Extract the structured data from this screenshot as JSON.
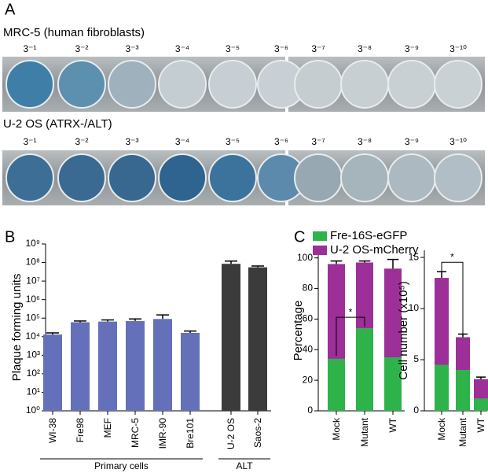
{
  "panel_labels": [
    "A",
    "B",
    "C"
  ],
  "plates": [
    {
      "title": "MRC-5 (human fibroblasts)",
      "dilutions": [
        "3⁻¹",
        "3⁻²",
        "3⁻³",
        "3⁻⁴",
        "3⁻⁵",
        "3⁻⁶",
        "3⁻⁷",
        "3⁻⁸",
        "3⁻⁹",
        "3⁻¹⁰"
      ]
    },
    {
      "title": "U-2 OS (ATRX-/ALT)",
      "dilutions": [
        "3⁻¹",
        "3⁻²",
        "3⁻³",
        "3⁻⁴",
        "3⁻⁵",
        "3⁻⁶",
        "3⁻⁷",
        "3⁻⁸",
        "3⁻⁹",
        "3⁻¹⁰"
      ]
    }
  ],
  "chart_data": [
    {
      "type": "bar",
      "log_scale": true,
      "ylabel": "Plaque forming units",
      "categories": [
        "WI-38",
        "Fre98",
        "MEF",
        "MRC-5",
        "IMR-90",
        "Bre101",
        "U-2 OS",
        "Saos-2"
      ],
      "values": [
        13000,
        60000,
        65000,
        70000,
        90000,
        16000,
        85000000,
        55000000
      ],
      "errors": [
        3000,
        10000,
        15000,
        20000,
        60000,
        4000,
        35000000,
        10000000
      ],
      "colors": [
        "#6470b9",
        "#6470b9",
        "#6470b9",
        "#6470b9",
        "#6470b9",
        "#6470b9",
        "#3b3b3b",
        "#3b3b3b"
      ],
      "ylim": [
        1,
        1000000000
      ],
      "yticks": [
        {
          "value": 1,
          "label": "10⁰"
        },
        {
          "value": 10,
          "label": "10¹"
        },
        {
          "value": 100,
          "label": "10²"
        },
        {
          "value": 1000,
          "label": "10³"
        },
        {
          "value": 10000,
          "label": "10⁴"
        },
        {
          "value": 100000,
          "label": "10⁵"
        },
        {
          "value": 1000000,
          "label": "10⁶"
        },
        {
          "value": 10000000,
          "label": "10⁷"
        },
        {
          "value": 100000000,
          "label": "10⁸"
        },
        {
          "value": 1000000000,
          "label": "10⁹"
        }
      ],
      "group_labels": [
        "Primary cells",
        "ALT"
      ]
    },
    {
      "type": "stacked_bar",
      "ylabel": "Percentage",
      "legend": true,
      "categories": [
        "Mock",
        "Mutant",
        "WT"
      ],
      "series": [
        {
          "name": "Fre-16S-eGFP",
          "color": "#2eb34b",
          "values": [
            34,
            54,
            35
          ],
          "errors": [
            2,
            1,
            7
          ]
        },
        {
          "name": "U-2 OS-mCherry",
          "color": "#9c2f98",
          "values": [
            62,
            43,
            58
          ],
          "errors": [
            2,
            1,
            6
          ]
        }
      ],
      "ylim": [
        0,
        105
      ],
      "yticks": [
        0,
        20,
        40,
        60,
        80,
        100
      ],
      "annotations": [
        {
          "text": "*"
        }
      ]
    },
    {
      "type": "stacked_bar",
      "ylabel": "Cell number (x10⁵)",
      "categories": [
        "Mock",
        "Mutant",
        "WT"
      ],
      "series": [
        {
          "color": "#2eb34b",
          "values": [
            4.5,
            4.0,
            1.2
          ],
          "errors": [
            0.3,
            0.1,
            0.15
          ]
        },
        {
          "color": "#9c2f98",
          "values": [
            8.5,
            3.2,
            1.9
          ],
          "errors": [
            0.6,
            0.3,
            0.2
          ]
        }
      ],
      "ylim": [
        0,
        15.7
      ],
      "yticks": [
        0,
        5,
        10,
        15
      ],
      "annotations": [
        {
          "text": "*"
        }
      ]
    }
  ]
}
